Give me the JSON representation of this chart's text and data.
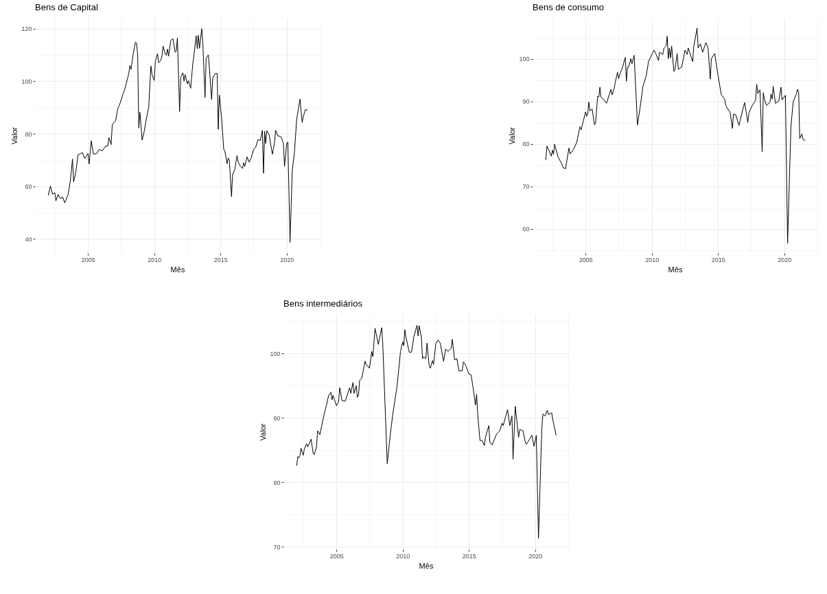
{
  "chart_data": [
    {
      "type": "line",
      "title": "Bens de Capital",
      "xlabel": "Mês",
      "ylabel": "Valor",
      "color": "#000000",
      "grid": true,
      "xlim": [
        "2001-01",
        "2022-07"
      ],
      "ylim": [
        34.6,
        124.1
      ],
      "xticks": [
        {
          "value": "2002-07",
          "label": null
        },
        {
          "value": "2005",
          "label": "2005"
        },
        {
          "value": "2007-07",
          "label": null
        },
        {
          "value": "2010",
          "label": "2010"
        },
        {
          "value": "2012-07",
          "label": null
        },
        {
          "value": "2015",
          "label": "2015"
        },
        {
          "value": "2017-07",
          "label": null
        },
        {
          "value": "2020",
          "label": "2020"
        },
        {
          "value": "2022-07",
          "label": null
        }
      ],
      "yticks": [
        40,
        {
          "value": 50,
          "label": null
        },
        60,
        {
          "value": 70,
          "label": null
        },
        80,
        {
          "value": 90,
          "label": null
        },
        100,
        {
          "value": 110,
          "label": null
        },
        120
      ],
      "x": [
        "2002-01",
        "2002-03",
        "2002-05",
        "2002-07",
        "2002-08",
        "2002-10",
        "2002-12",
        "2003-02",
        "2003-04",
        "2003-07",
        "2003-09",
        "2003-11",
        "2003-12",
        "2004-02",
        "2004-04",
        "2004-08",
        "2004-10",
        "2005-01",
        "2005-02",
        "2005-04",
        "2005-06",
        "2005-09",
        "2005-11",
        "2006-02",
        "2006-05",
        "2006-07",
        "2006-08",
        "2006-10",
        "2006-11",
        "2007-02",
        "2007-04",
        "2007-06",
        "2007-09",
        "2007-10",
        "2007-11",
        "2008-02",
        "2008-03",
        "2008-04",
        "2008-06",
        "2008-08",
        "2008-09",
        "2008-10",
        "2008-11",
        "2008-12",
        "2009-02",
        "2009-04",
        "2009-06",
        "2009-08",
        "2009-10",
        "2009-11",
        "2010-01",
        "2010-02",
        "2010-04",
        "2010-05",
        "2010-07",
        "2010-08",
        "2010-09",
        "2010-11",
        "2010-12",
        "2011-01",
        "2011-02",
        "2011-04",
        "2011-06",
        "2011-08",
        "2011-09",
        "2011-10",
        "2011-12",
        "2012-01",
        "2012-03",
        "2012-04",
        "2012-05",
        "2012-07",
        "2012-08",
        "2012-10",
        "2012-12",
        "2013-01",
        "2013-03",
        "2013-04",
        "2013-05",
        "2013-06",
        "2013-08",
        "2013-09",
        "2013-11",
        "2013-12",
        "2014-02",
        "2014-03",
        "2014-05",
        "2014-06",
        "2014-08",
        "2014-10",
        "2014-11",
        "2014-12",
        "2015-02",
        "2015-04",
        "2015-05",
        "2015-07",
        "2015-08",
        "2015-09",
        "2015-11",
        "2015-12",
        "2016-02",
        "2016-04",
        "2016-05",
        "2016-07",
        "2016-09",
        "2016-10",
        "2016-11",
        "2017-01",
        "2017-03",
        "2017-05",
        "2017-07",
        "2017-09",
        "2017-11",
        "2018-01",
        "2018-03",
        "2018-04",
        "2018-05",
        "2018-06",
        "2018-07",
        "2018-09",
        "2018-12",
        "2019-02",
        "2019-03",
        "2019-05",
        "2019-07",
        "2019-08",
        "2019-10",
        "2019-11",
        "2020-01",
        "2020-02",
        "2020-04",
        "2020-06",
        "2020-08",
        "2020-10",
        "2021-01",
        "2021-03",
        "2021-04",
        "2021-06",
        "2021-08"
      ],
      "values": [
        56.5,
        60.1,
        57.0,
        57.6,
        54.5,
        56.9,
        55.3,
        56.0,
        53.7,
        56.8,
        62.0,
        70.4,
        61.7,
        65.5,
        72.0,
        72.8,
        70.6,
        72.5,
        68.5,
        77.3,
        72.2,
        72.5,
        74.0,
        73.5,
        75.3,
        75.3,
        78.5,
        75.9,
        83.5,
        85.0,
        89.5,
        91.5,
        95.5,
        96.5,
        98.0,
        103.0,
        106.0,
        104.5,
        110.5,
        114.8,
        114.5,
        110.0,
        82.2,
        88.2,
        77.6,
        81.0,
        86.0,
        90.0,
        105.8,
        102.5,
        100.3,
        107.5,
        110.5,
        107.0,
        108.0,
        109.5,
        113.4,
        110.3,
        109.8,
        112.2,
        109.5,
        115.5,
        116.2,
        111.0,
        111.5,
        116.5,
        88.5,
        101.5,
        103.2,
        100.0,
        102.5,
        99.0,
        100.2,
        97.3,
        107.0,
        110.0,
        117.3,
        112.3,
        117.5,
        112.5,
        120.0,
        114.5,
        93.8,
        108.8,
        110.0,
        105.0,
        93.0,
        101.2,
        102.8,
        103.0,
        81.7,
        94.7,
        86.0,
        74.0,
        73.5,
        68.6,
        70.8,
        70.0,
        56.1,
        64.5,
        66.5,
        71.7,
        69.3,
        67.7,
        66.8,
        69.0,
        67.6,
        71.2,
        69.2,
        71.0,
        74.0,
        75.0,
        77.8,
        77.4,
        81.3,
        65.0,
        81.0,
        76.3,
        81.2,
        79.7,
        72.2,
        76.8,
        81.3,
        79.2,
        79.0,
        78.8,
        76.3,
        67.6,
        76.5,
        76.8,
        38.7,
        66.0,
        73.0,
        85.5,
        93.2,
        84.3,
        86.5,
        89.3,
        88.8
      ]
    },
    {
      "type": "line",
      "title": "Bens de consumo",
      "xlabel": "Mês",
      "ylabel": "Valor",
      "color": "#000000",
      "grid": true,
      "xlim": [
        "2001-01",
        "2022-07"
      ],
      "ylim": [
        54.3,
        109.6
      ],
      "xticks": [
        {
          "value": "2002-07",
          "label": null
        },
        {
          "value": "2005",
          "label": "2005"
        },
        {
          "value": "2007-07",
          "label": null
        },
        {
          "value": "2010",
          "label": "2010"
        },
        {
          "value": "2012-07",
          "label": null
        },
        {
          "value": "2015",
          "label": "2015"
        },
        {
          "value": "2017-07",
          "label": null
        },
        {
          "value": "2020",
          "label": "2020"
        },
        {
          "value": "2022-07",
          "label": null
        }
      ],
      "yticks": [
        {
          "value": 55,
          "label": null
        },
        60,
        {
          "value": 65,
          "label": null
        },
        70,
        {
          "value": 75,
          "label": null
        },
        80,
        {
          "value": 85,
          "label": null
        },
        90,
        {
          "value": 95,
          "label": null
        },
        100,
        {
          "value": 105,
          "label": null
        }
      ],
      "x": [
        "2002-01",
        "2002-02",
        "2002-06",
        "2002-07",
        "2002-08",
        "2002-09",
        "2002-12",
        "2003-03",
        "2003-05",
        "2003-07",
        "2003-09",
        "2003-10",
        "2003-11",
        "2004-02",
        "2004-05",
        "2004-06",
        "2004-08",
        "2004-09",
        "2005-01",
        "2005-02",
        "2005-03",
        "2005-04",
        "2005-05",
        "2005-07",
        "2005-09",
        "2005-10",
        "2005-12",
        "2006-01",
        "2006-02",
        "2006-03",
        "2006-05",
        "2006-08",
        "2006-12",
        "2007-01",
        "2007-03",
        "2007-04",
        "2007-06",
        "2007-07",
        "2007-09",
        "2007-10",
        "2008-01",
        "2008-02",
        "2008-03",
        "2008-04",
        "2008-06",
        "2008-07",
        "2008-09",
        "2008-12",
        "2009-03",
        "2009-05",
        "2009-08",
        "2009-10",
        "2010-03",
        "2010-05",
        "2010-07",
        "2010-08",
        "2010-11",
        "2010-12",
        "2011-02",
        "2011-03",
        "2011-04",
        "2011-05",
        "2011-06",
        "2011-07",
        "2011-09",
        "2011-10",
        "2011-12",
        "2012-01",
        "2012-04",
        "2012-06",
        "2012-07",
        "2012-09",
        "2012-10",
        "2013-02",
        "2013-03",
        "2013-06",
        "2013-07",
        "2013-09",
        "2013-11",
        "2014-02",
        "2014-04",
        "2014-06",
        "2014-07",
        "2014-10",
        "2015-01",
        "2015-04",
        "2015-07",
        "2015-08",
        "2015-12",
        "2016-02",
        "2016-03",
        "2016-05",
        "2016-08",
        "2016-09",
        "2017-01",
        "2017-04",
        "2017-05",
        "2017-08",
        "2017-11",
        "2017-12",
        "2018-01",
        "2018-03",
        "2018-05",
        "2018-06",
        "2018-07",
        "2018-09",
        "2018-12",
        "2019-01",
        "2019-02",
        "2019-03",
        "2019-05",
        "2019-08",
        "2019-10",
        "2019-11",
        "2020-02",
        "2020-04",
        "2020-07",
        "2020-09",
        "2020-12",
        "2021-01",
        "2021-02",
        "2021-03",
        "2021-05",
        "2021-06",
        "2021-08"
      ],
      "values": [
        76.2,
        79.5,
        77.1,
        78.5,
        77.5,
        79.9,
        77.0,
        75.5,
        74.3,
        74.2,
        77.5,
        79.0,
        77.6,
        78.6,
        80.3,
        81.6,
        84.0,
        83.3,
        87.5,
        86.5,
        87.0,
        89.8,
        87.7,
        88.2,
        84.5,
        84.7,
        91.2,
        91.0,
        93.3,
        91.0,
        90.5,
        89.5,
        92.8,
        91.5,
        93.0,
        94.5,
        96.8,
        95.3,
        97.0,
        97.5,
        100.3,
        94.7,
        98.0,
        98.0,
        100.0,
        98.8,
        100.8,
        84.4,
        89.5,
        93.5,
        96.0,
        99.3,
        102.0,
        101.0,
        99.6,
        101.5,
        101.0,
        102.5,
        103.0,
        105.3,
        100.0,
        102.5,
        100.2,
        103.0,
        97.0,
        97.5,
        101.2,
        97.5,
        98.0,
        100.5,
        102.0,
        101.0,
        102.5,
        99.3,
        102.8,
        107.2,
        102.5,
        103.5,
        101.5,
        103.8,
        102.5,
        95.2,
        100.0,
        101.2,
        96.0,
        91.5,
        90.5,
        89.0,
        87.3,
        83.6,
        87.0,
        86.8,
        84.3,
        85.5,
        89.7,
        85.0,
        87.3,
        89.0,
        90.2,
        94.0,
        91.8,
        92.7,
        78.1,
        92.0,
        90.5,
        89.0,
        89.8,
        91.7,
        90.5,
        93.5,
        89.5,
        90.0,
        93.3,
        90.3,
        91.4,
        56.6,
        84.0,
        89.8,
        91.8,
        92.8,
        92.0,
        81.2,
        82.3,
        81.0,
        80.8
      ]
    },
    {
      "type": "line",
      "title": "Bens intermediários",
      "xlabel": "Mês",
      "ylabel": "Valor",
      "color": "#000000",
      "grid": true,
      "xlim": [
        "2001-01",
        "2022-07"
      ],
      "ylim": [
        69.6,
        106.1
      ],
      "xticks": [
        {
          "value": "2002-07",
          "label": null
        },
        {
          "value": "2005",
          "label": "2005"
        },
        {
          "value": "2007-07",
          "label": null
        },
        {
          "value": "2010",
          "label": "2010"
        },
        {
          "value": "2012-07",
          "label": null
        },
        {
          "value": "2015",
          "label": "2015"
        },
        {
          "value": "2017-07",
          "label": null
        },
        {
          "value": "2020",
          "label": "2020"
        },
        {
          "value": "2022-07",
          "label": null
        }
      ],
      "yticks": [
        70,
        {
          "value": 75,
          "label": null
        },
        80,
        {
          "value": 85,
          "label": null
        },
        90,
        {
          "value": 95,
          "label": null
        },
        100,
        {
          "value": 105,
          "label": null
        }
      ],
      "x": [
        "2002-01",
        "2002-02",
        "2002-03",
        "2002-04",
        "2002-05",
        "2002-07",
        "2002-08",
        "2002-10",
        "2002-11",
        "2003-02",
        "2003-04",
        "2003-05",
        "2003-07",
        "2003-08",
        "2003-10",
        "2004-02",
        "2004-04",
        "2004-06",
        "2004-08",
        "2004-09",
        "2004-10",
        "2005-01",
        "2005-03",
        "2005-04",
        "2005-06",
        "2005-09",
        "2006-01",
        "2006-02",
        "2006-04",
        "2006-05",
        "2006-07",
        "2006-08",
        "2006-09",
        "2006-10",
        "2006-12",
        "2007-03",
        "2007-04",
        "2007-06",
        "2007-07",
        "2007-09",
        "2007-10",
        "2007-12",
        "2008-03",
        "2008-06",
        "2008-07",
        "2008-11",
        "2009-02",
        "2009-04",
        "2009-08",
        "2009-11",
        "2010-01",
        "2010-02",
        "2010-03",
        "2010-04",
        "2010-07",
        "2010-09",
        "2010-11",
        "2011-02",
        "2011-03",
        "2011-04",
        "2011-06",
        "2011-07",
        "2011-08",
        "2011-10",
        "2011-11",
        "2012-01",
        "2012-02",
        "2012-04",
        "2012-05",
        "2012-07",
        "2012-09",
        "2012-11",
        "2013-02",
        "2013-04",
        "2013-06",
        "2013-09",
        "2013-10",
        "2013-12",
        "2014-02",
        "2014-04",
        "2014-07",
        "2014-08",
        "2014-10",
        "2015-01",
        "2015-03",
        "2015-05",
        "2015-07",
        "2015-08",
        "2015-09",
        "2015-11",
        "2016-01",
        "2016-03",
        "2016-04",
        "2016-07",
        "2016-08",
        "2016-10",
        "2017-02",
        "2017-05",
        "2017-07",
        "2017-08",
        "2017-12",
        "2018-02",
        "2018-04",
        "2018-05",
        "2018-07",
        "2018-10",
        "2018-11",
        "2019-02",
        "2019-04",
        "2019-05",
        "2019-08",
        "2019-10",
        "2019-12",
        "2020-02",
        "2020-04",
        "2020-07",
        "2020-08",
        "2020-10",
        "2020-12",
        "2021-01",
        "2021-04",
        "2021-05",
        "2021-08"
      ],
      "values": [
        82.6,
        84.0,
        83.8,
        84.2,
        85.3,
        84.2,
        85.2,
        86.0,
        85.5,
        86.7,
        84.5,
        84.3,
        85.5,
        88.0,
        87.4,
        90.7,
        92.0,
        93.5,
        94.0,
        92.8,
        93.5,
        91.9,
        92.5,
        94.7,
        92.7,
        92.6,
        94.7,
        93.8,
        95.5,
        93.8,
        95.0,
        93.2,
        93.5,
        95.8,
        96.2,
        98.8,
        98.2,
        98.0,
        97.7,
        100.3,
        99.5,
        103.9,
        101.4,
        104.0,
        101.5,
        82.9,
        87.8,
        90.5,
        95.0,
        100.3,
        101.8,
        101.2,
        103.7,
        102.5,
        100.2,
        100.2,
        102.5,
        104.4,
        102.7,
        104.3,
        102.5,
        99.2,
        99.5,
        99.2,
        101.6,
        98.1,
        97.7,
        98.9,
        98.3,
        101.5,
        102.1,
        101.6,
        98.8,
        100.7,
        100.3,
        100.8,
        102.2,
        99.0,
        99.2,
        97.3,
        97.3,
        98.7,
        98.2,
        96.8,
        96.7,
        94.5,
        92.0,
        93.7,
        90.5,
        86.5,
        86.5,
        85.7,
        87.0,
        88.8,
        86.2,
        85.8,
        87.5,
        88.0,
        89.2,
        88.8,
        91.3,
        88.8,
        90.3,
        83.6,
        91.8,
        87.0,
        88.2,
        88.0,
        86.3,
        85.9,
        86.7,
        87.3,
        85.6,
        87.3,
        71.3,
        88.3,
        90.6,
        90.3,
        91.2,
        90.5,
        90.8,
        89.7,
        87.3
      ]
    }
  ]
}
